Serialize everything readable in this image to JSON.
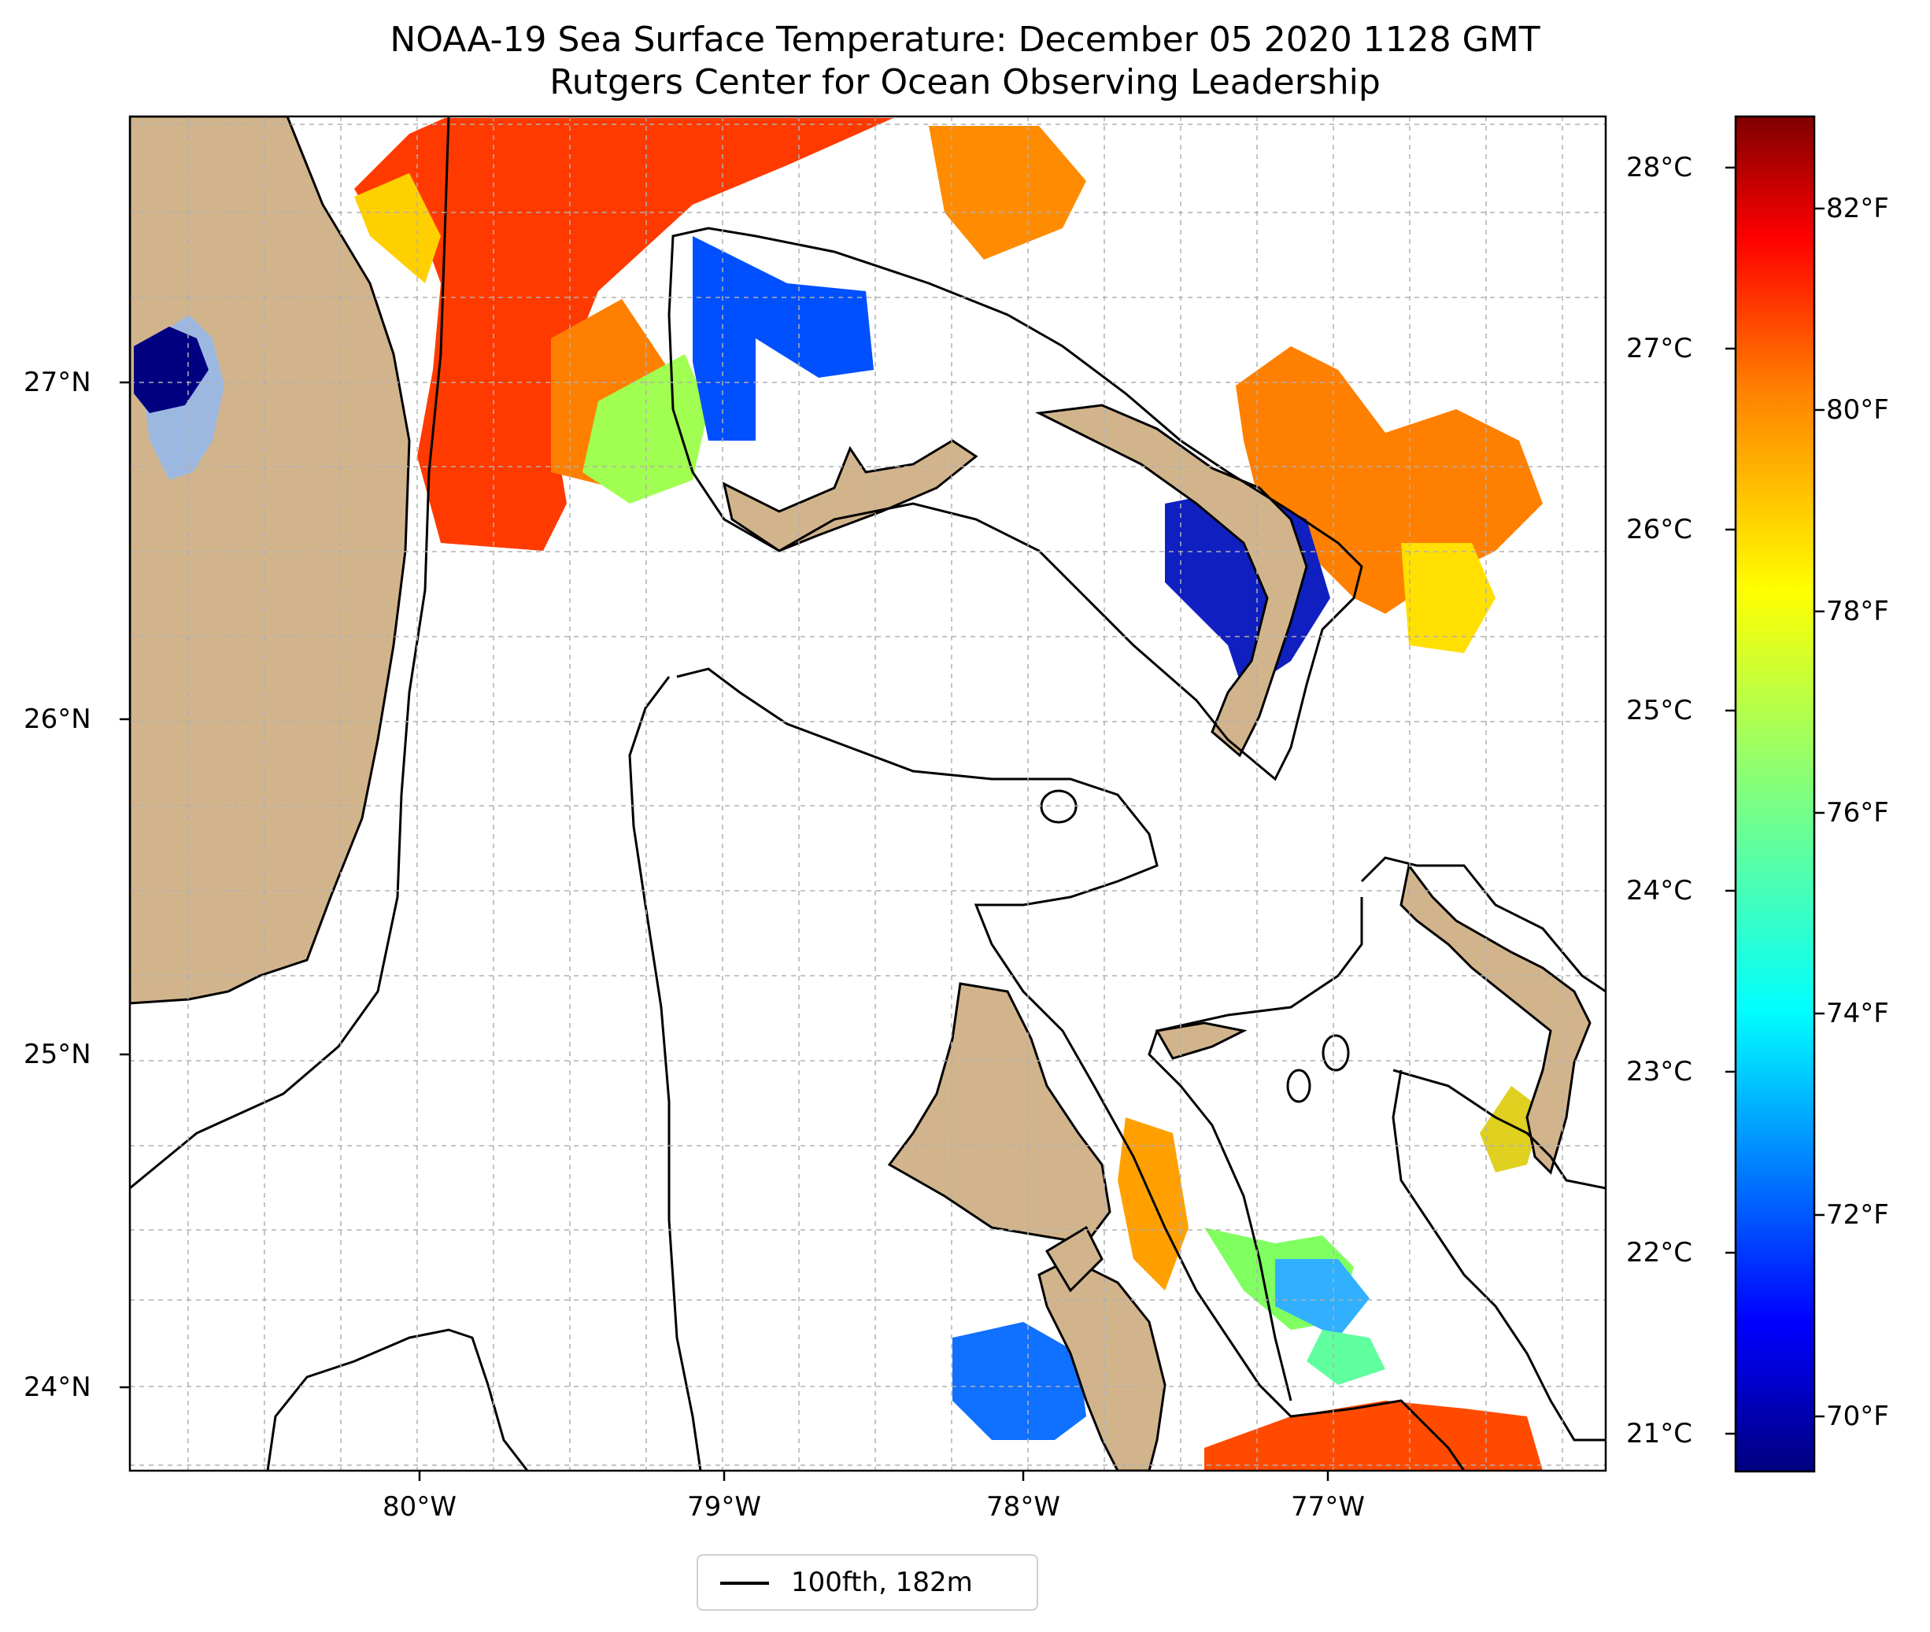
{
  "title": "NOAA-19 Sea Surface Temperature: December 05 2020 1128 GMT",
  "subtitle": "Rutgers Center for Ocean Observing Leadership",
  "longitude_labels": [
    "80°W",
    "79°W",
    "78°W",
    "77°W"
  ],
  "latitude_labels": [
    "27°N",
    "26°N",
    "25°N",
    "24°N"
  ],
  "colorbar": {
    "celsius_labels": [
      "28°C",
      "27°C",
      "26°C",
      "25°C",
      "24°C",
      "23°C",
      "22°C",
      "21°C"
    ],
    "fahrenheit_labels": [
      "82°F",
      "80°F",
      "78°F",
      "76°F",
      "74°F",
      "72°F",
      "70°F"
    ],
    "colormap": "jet",
    "colors": [
      "#00007f",
      "#0000ff",
      "#007fff",
      "#00ffff",
      "#7fff7f",
      "#ffff00",
      "#ff7f00",
      "#ff0000",
      "#7f0000"
    ]
  },
  "legend": {
    "label": "100fth, 182m"
  },
  "colors": {
    "land": "#d2b48c",
    "lake": "#9cb8e0",
    "grid": "#b0b0b0",
    "isobath": "#000000"
  }
}
